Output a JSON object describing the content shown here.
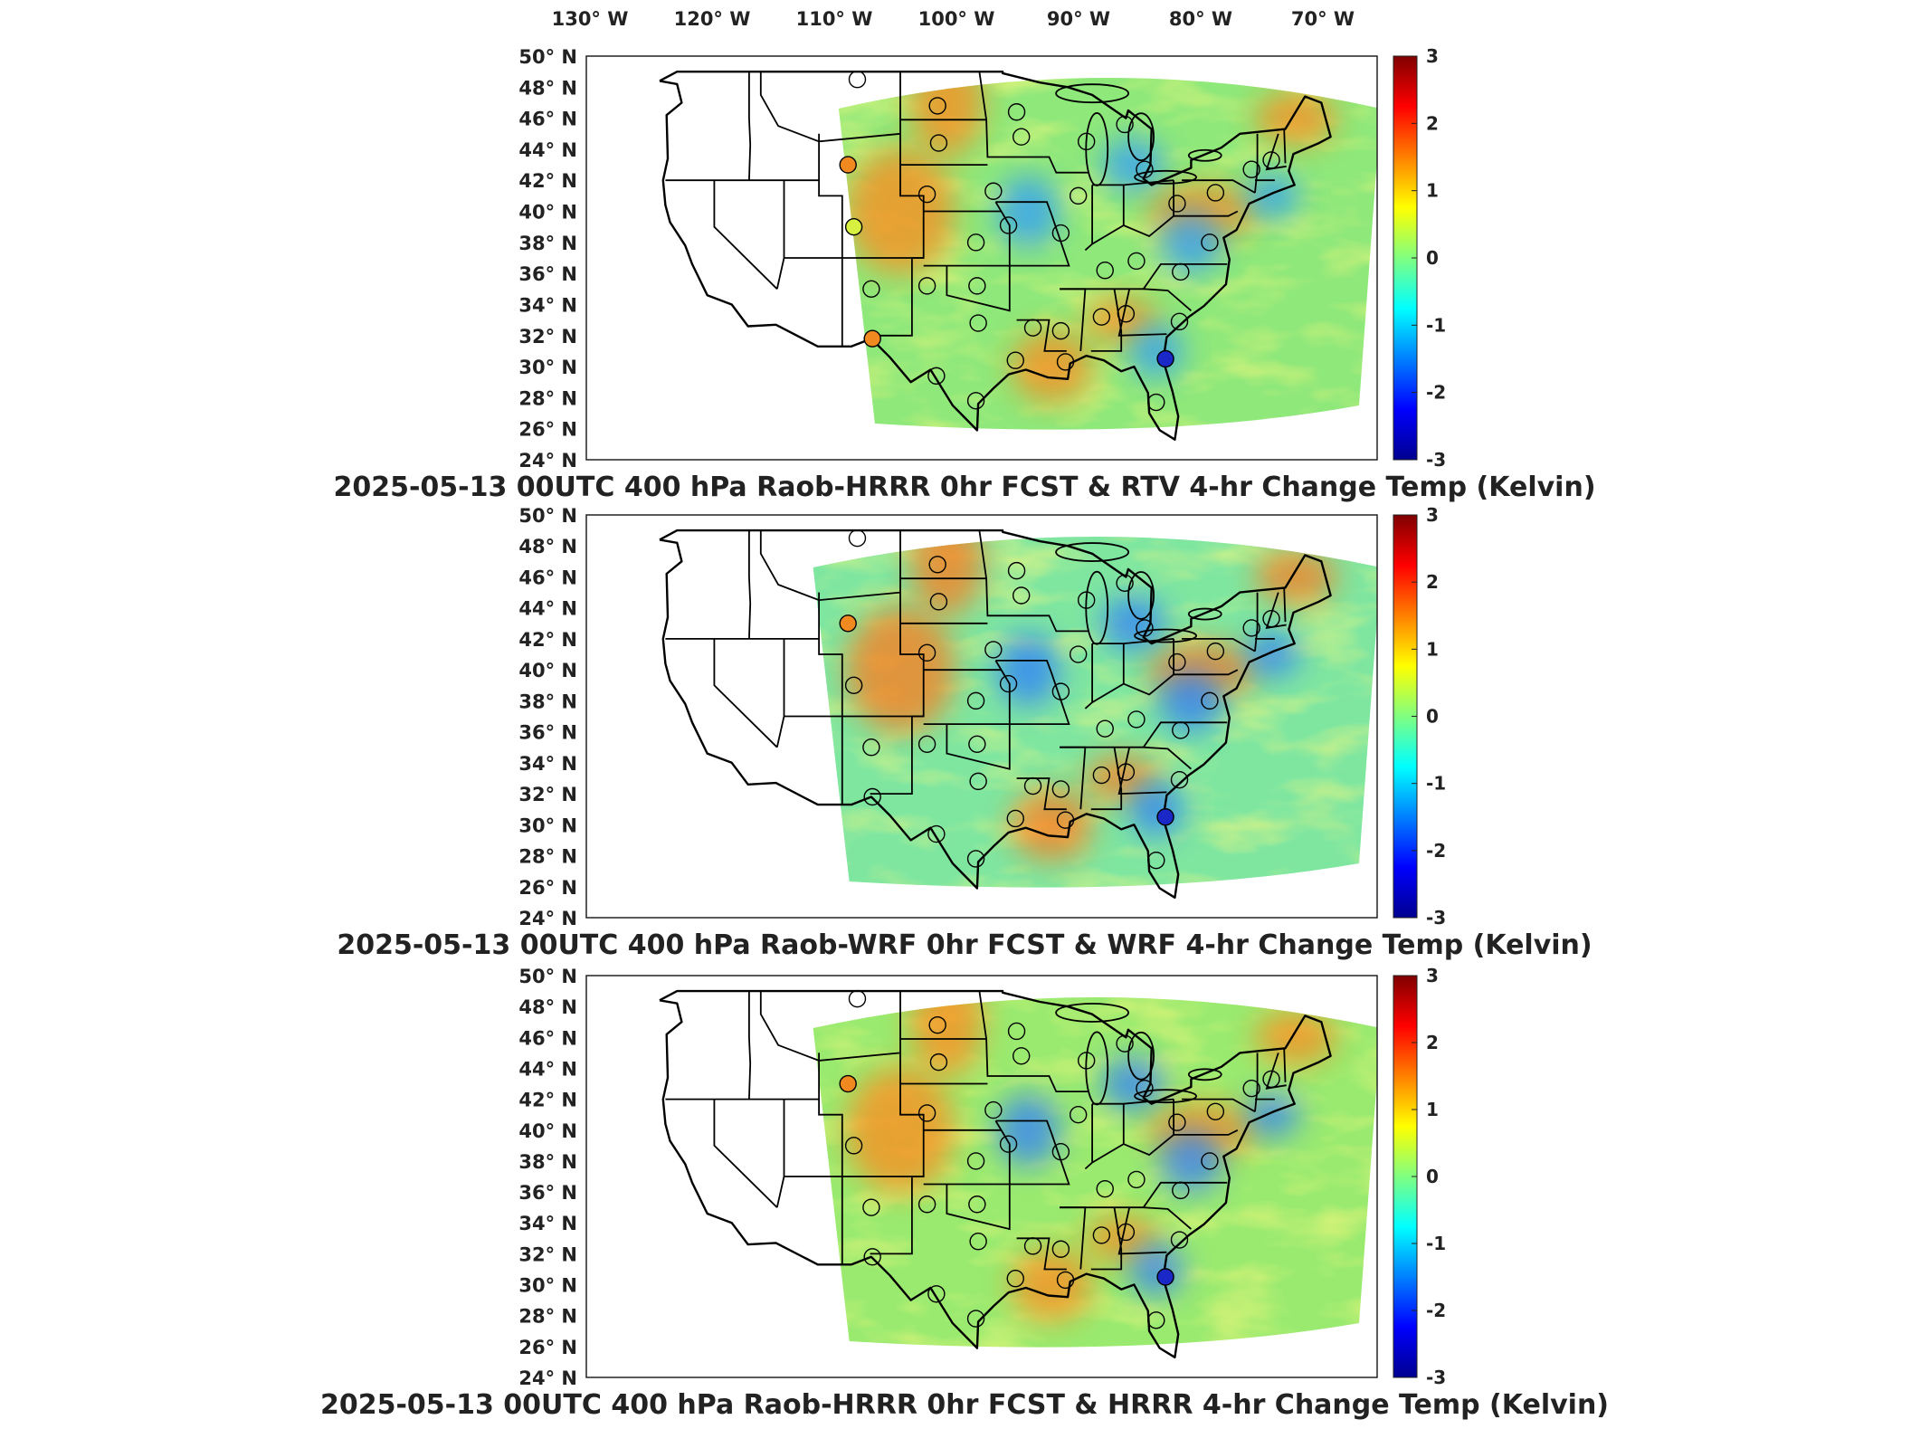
{
  "longitude_labels": [
    "130° W",
    "120° W",
    "110° W",
    "100° W",
    "90° W",
    "80° W",
    "70° W"
  ],
  "latitude_labels": [
    "50° N",
    "48° N",
    "46° N",
    "44° N",
    "42° N",
    "40° N",
    "38° N",
    "36° N",
    "34° N",
    "32° N",
    "30° N",
    "28° N",
    "26° N",
    "24° N"
  ],
  "colorbar": {
    "ticks": [
      "3",
      "2",
      "1",
      "0",
      "-1",
      "-2",
      "-3"
    ],
    "range": [
      -3,
      3
    ],
    "colormap": "jet",
    "colors": [
      "#00008f",
      "#0000ff",
      "#0080ff",
      "#00ffff",
      "#80ff80",
      "#ffff00",
      "#ff8000",
      "#ff0000",
      "#800000"
    ]
  },
  "panels": [
    {
      "title": "2025-05-13 00UTC 400 hPa Raob-HRRR 0hr FCST & RTV 4-hr Change Temp (Kelvin)",
      "field_base_color": "#8fe87a",
      "warm_color": "#ff8a1a",
      "cool_color": "#2f9bff",
      "stations": [
        "#b6f05a",
        "#f08a20",
        "#d8f040",
        "#f0c83a",
        "#f08a20",
        "#8fe87a",
        "#b6f05a",
        "#38b8ff",
        "#1a28c8"
      ]
    },
    {
      "title": "2025-05-13 00UTC 400 hPa Raob-WRF 0hr FCST & WRF 4-hr Change Temp (Kelvin)",
      "field_base_color": "#7fe6a0",
      "warm_color": "#ff7a1a",
      "cool_color": "#2a7dff",
      "stations": [
        "#f08a20",
        "#f08a20",
        "#d8f040",
        "#f0c83a",
        "#f08a20",
        "#8fe87a",
        "#b6f05a",
        "#38b8ff",
        "#1a28c8"
      ]
    },
    {
      "title": "2025-05-13 00UTC 400 hPa Raob-HRRR 0hr FCST & HRRR 4-hr Change Temp (Kelvin)",
      "field_base_color": "#9aea70",
      "warm_color": "#ff8a1a",
      "cool_color": "#2f7dff",
      "stations": [
        "#b6f05a",
        "#f08a20",
        "#d8f040",
        "#f0c83a",
        "#f08a20",
        "#8fe87a",
        "#b6f05a",
        "#38b8ff",
        "#1a28c8"
      ]
    }
  ]
}
